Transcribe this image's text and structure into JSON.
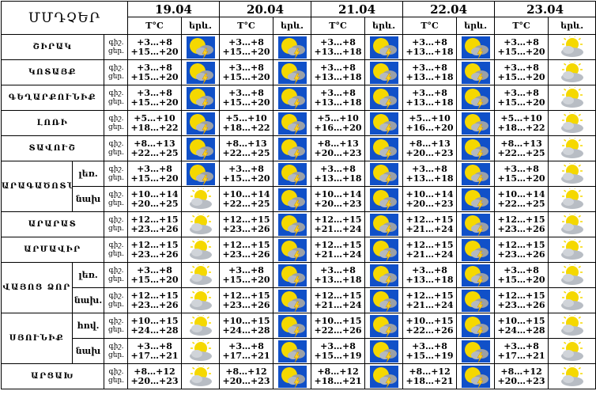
{
  "title": "ՄՄԴՉԵՐ",
  "dates": [
    "19.04",
    "20.04",
    "21.04",
    "22.04",
    "23.04"
  ],
  "temp_header": "Т°С",
  "phen_header": "երև.",
  "day_label": "ցեր.",
  "night_label": "գիշ.",
  "regions": [
    {
      "name": "ՇԻՐԱԿ",
      "night": [
        "+3…+8",
        "+3…+8",
        "+3…+8",
        "+3…+8",
        "+3…+8"
      ],
      "day": [
        "+15…+20",
        "+15…+20",
        "+13…+18",
        "+13…+18",
        "+15…+20"
      ],
      "icons": [
        "storm",
        "storm",
        "storm",
        "storm",
        "partly"
      ]
    },
    {
      "name": "ԿՈՏԱՅՔ",
      "night": [
        "+3…+8",
        "+3…+8",
        "+3…+8",
        "+3…+8",
        "+3…+8"
      ],
      "day": [
        "+15…+20",
        "+15…+20",
        "+13…+18",
        "+13…+18",
        "+15…+20"
      ],
      "icons": [
        "storm",
        "storm",
        "storm",
        "storm",
        "partly"
      ]
    },
    {
      "name": "ԳԵՂԱՐՔՈՒՆԻՔ",
      "night": [
        "+3…+8",
        "+3…+8",
        "+3…+8",
        "+3…+8",
        "+3…+8"
      ],
      "day": [
        "+15…+20",
        "+15…+20",
        "+13…+18",
        "+13…+18",
        "+15…+20"
      ],
      "icons": [
        "storm",
        "storm",
        "storm",
        "storm",
        "partly"
      ]
    },
    {
      "name": "ԼՈՌԻ",
      "night": [
        "+5…+10",
        "+5…+10",
        "+5…+10",
        "+5…+10",
        "+5…+10"
      ],
      "day": [
        "+18…+22",
        "+18…+22",
        "+16…+20",
        "+16…+20",
        "+18…+22"
      ],
      "icons": [
        "storm",
        "storm",
        "storm",
        "storm",
        "partly"
      ]
    },
    {
      "name": "ՏԱՎՈՒՇ",
      "night": [
        "+8…+13",
        "+8…+13",
        "+8…+13",
        "+8…+13",
        "+8…+13"
      ],
      "day": [
        "+22…+25",
        "+22…+25",
        "+20…+23",
        "+20…+23",
        "+22…+25"
      ],
      "icons": [
        "storm",
        "storm",
        "storm",
        "storm",
        "partly"
      ]
    },
    {
      "name": "ԱՐԱԳԱԾՈՏՆ",
      "subs": [
        {
          "label": "լեռ.",
          "night": [
            "+3…+8",
            "+3…+8",
            "+3…+8",
            "+3…+8",
            "+3…+8"
          ],
          "day": [
            "+15…+20",
            "+15…+20",
            "+13…+18",
            "+13…+18",
            "+15…+20"
          ],
          "icons": [
            "storm",
            "storm",
            "storm",
            "storm",
            "partly"
          ]
        },
        {
          "label": "նախ",
          "night": [
            "+10…+14",
            "+10…+14",
            "+10…+14",
            "+10…+14",
            "+10…+14"
          ],
          "day": [
            "+20…+25",
            "+22…+25",
            "+20…+23",
            "+20…+23",
            "+22…+25"
          ],
          "icons": [
            "partly",
            "storm",
            "storm",
            "storm",
            "partly"
          ]
        }
      ]
    },
    {
      "name": "ԱՐԱՐԱՏ",
      "night": [
        "+12…+15",
        "+12…+15",
        "+12…+15",
        "+12…+15",
        "+12…+15"
      ],
      "day": [
        "+23…+26",
        "+23…+26",
        "+21…+24",
        "+21…+24",
        "+23…+26"
      ],
      "icons": [
        "partly",
        "storm",
        "storm",
        "storm",
        "partly"
      ]
    },
    {
      "name": "ԱՐՄԱՎԻՐ",
      "night": [
        "+12…+15",
        "+12…+15",
        "+12…+15",
        "+12…+15",
        "+12…+15"
      ],
      "day": [
        "+23…+26",
        "+23…+26",
        "+21…+24",
        "+21…+24",
        "+23…+26"
      ],
      "icons": [
        "partly",
        "storm",
        "storm",
        "storm",
        "partly"
      ]
    },
    {
      "name": "ՎԱՅՈՑ ՁՈՐ",
      "subs": [
        {
          "label": "լեռ.",
          "night": [
            "+3…+8",
            "+3…+8",
            "+3…+8",
            "+3…+8",
            "+3…+8"
          ],
          "day": [
            "+15…+20",
            "+15…+20",
            "+13…+18",
            "+13…+18",
            "+15…+20"
          ],
          "icons": [
            "partly",
            "storm",
            "storm",
            "storm",
            "partly"
          ]
        },
        {
          "label": "նախ.",
          "night": [
            "+12…+15",
            "+12…+15",
            "+12…+15",
            "+12…+15",
            "+12…+15"
          ],
          "day": [
            "+23…+26",
            "+23…+26",
            "+21…+24",
            "+21…+24",
            "+23…+26"
          ],
          "icons": [
            "partly",
            "storm",
            "storm",
            "storm",
            "partly"
          ]
        }
      ]
    },
    {
      "name": "ՍՅՈՒՆԻՔ",
      "subs": [
        {
          "label": "հով.",
          "night": [
            "+10…+15",
            "+10…+15",
            "+10…+15",
            "+10…+15",
            "+10…+15"
          ],
          "day": [
            "+24…+28",
            "+24…+28",
            "+22…+26",
            "+22…+26",
            "+24…+28"
          ],
          "icons": [
            "partly",
            "storm",
            "storm",
            "storm",
            "partly"
          ]
        },
        {
          "label": "նախ",
          "night": [
            "+3…+8",
            "+3…+8",
            "+3…+8",
            "+3…+8",
            "+3…+8"
          ],
          "day": [
            "+17…+21",
            "+17…+21",
            "+15…+19",
            "+15…+19",
            "+17…+21"
          ],
          "icons": [
            "partly",
            "storm",
            "storm",
            "storm",
            "partly"
          ]
        }
      ]
    },
    {
      "name": "ԱՐՑԱԽ",
      "night": [
        "+8…+12",
        "+8…+12",
        "+8…+12",
        "+8…+12",
        "+8…+12"
      ],
      "day": [
        "+20…+23",
        "+20…+23",
        "+18…+21",
        "+18…+21",
        "+20…+23"
      ],
      "icons": [
        "partly",
        "storm",
        "storm",
        "storm",
        "partly"
      ]
    }
  ],
  "icon_names": {
    "storm": "sun-cloud-lightning-icon",
    "partly": "sun-behind-cloud-icon"
  },
  "colors": {
    "sun": "#f5d800",
    "cloud": "#9aa0a8",
    "sky": "#1050c8",
    "lightning": "#ffd21f"
  }
}
